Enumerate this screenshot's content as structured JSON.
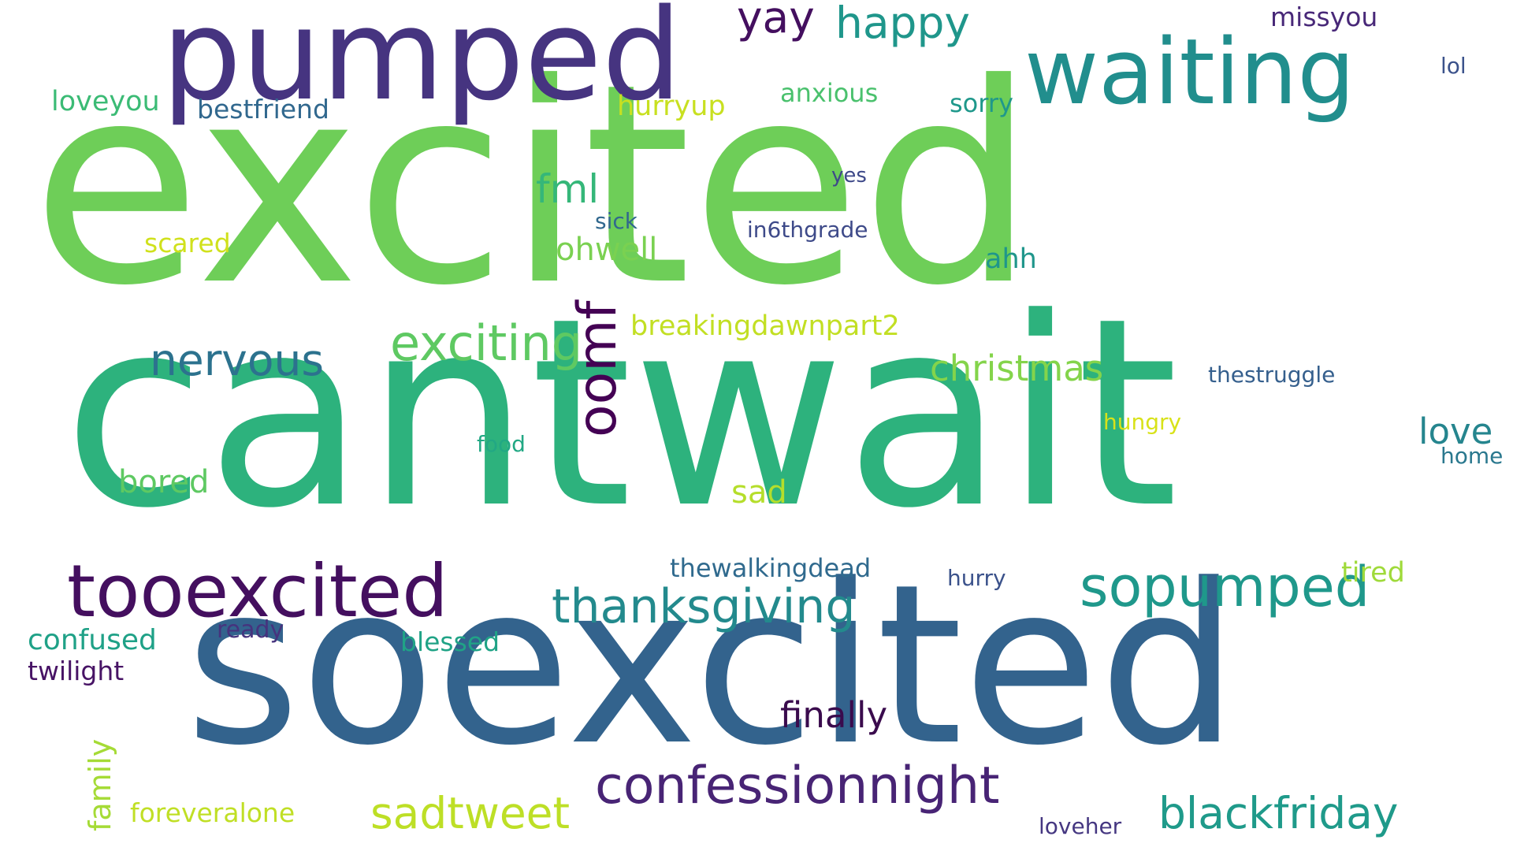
{
  "words": [
    {
      "id": "excited",
      "text": "excited",
      "color": "#6ece58"
    },
    {
      "id": "cantwait",
      "text": "cantwait",
      "color": "#2db27d"
    },
    {
      "id": "soexcited",
      "text": "soexcited",
      "color": "#33638d"
    },
    {
      "id": "pumped",
      "text": "pumped",
      "color": "#463480"
    },
    {
      "id": "waiting",
      "text": "waiting",
      "color": "#218e8d"
    },
    {
      "id": "tooexcited",
      "text": "tooexcited",
      "color": "#440f5f"
    },
    {
      "id": "confessionnight",
      "text": "confessionnight",
      "color": "#482475"
    },
    {
      "id": "sopumped",
      "text": "sopumped",
      "color": "#1f988b"
    },
    {
      "id": "thanksgiving",
      "text": "thanksgiving",
      "color": "#238a8d"
    },
    {
      "id": "exciting",
      "text": "exciting",
      "color": "#5ec962"
    },
    {
      "id": "blackfriday",
      "text": "blackfriday",
      "color": "#1f9a8a"
    },
    {
      "id": "sadtweet",
      "text": "sadtweet",
      "color": "#bddf26"
    },
    {
      "id": "oomf",
      "text": "oomf",
      "color": "#440154"
    },
    {
      "id": "nervous",
      "text": "nervous",
      "color": "#2c728e"
    },
    {
      "id": "happy",
      "text": "happy",
      "color": "#1f968b"
    },
    {
      "id": "christmas",
      "text": "christmas",
      "color": "#84d44b"
    },
    {
      "id": "yay",
      "text": "yay",
      "color": "#440f5f"
    },
    {
      "id": "finally",
      "text": "finally",
      "color": "#3a0b4d"
    },
    {
      "id": "fml",
      "text": "fml",
      "color": "#35b779"
    },
    {
      "id": "ohwell",
      "text": "ohwell",
      "color": "#7ad151"
    },
    {
      "id": "love",
      "text": "love",
      "color": "#25858e"
    },
    {
      "id": "bored",
      "text": "bored",
      "color": "#5ec962"
    },
    {
      "id": "confused",
      "text": "confused",
      "color": "#1fa187"
    },
    {
      "id": "family",
      "text": "family",
      "color": "#a5db36"
    },
    {
      "id": "breakingdawnpart2",
      "text": "breakingdawnpart2",
      "color": "#c2df23"
    },
    {
      "id": "sad",
      "text": "sad",
      "color": "#b5de2b"
    },
    {
      "id": "ahh",
      "text": "ahh",
      "color": "#1f968b"
    },
    {
      "id": "anxious",
      "text": "anxious",
      "color": "#4ac16d"
    },
    {
      "id": "sorry",
      "text": "sorry",
      "color": "#1f988b"
    },
    {
      "id": "loveyou",
      "text": "loveyou",
      "color": "#3bbb75"
    },
    {
      "id": "bestfriend",
      "text": "bestfriend",
      "color": "#31688e"
    },
    {
      "id": "hurryup",
      "text": "hurryup",
      "color": "#c8e020"
    },
    {
      "id": "missyou",
      "text": "missyou",
      "color": "#482878"
    },
    {
      "id": "lol",
      "text": "lol",
      "color": "#3b528b"
    },
    {
      "id": "yes",
      "text": "yes",
      "color": "#3e4989"
    },
    {
      "id": "sick",
      "text": "sick",
      "color": "#31688e"
    },
    {
      "id": "in6thgrade",
      "text": "in6thgrade",
      "color": "#3e4a89"
    },
    {
      "id": "scared",
      "text": "scared",
      "color": "#d0e11c"
    },
    {
      "id": "thestruggle",
      "text": "thestruggle",
      "color": "#355f8d"
    },
    {
      "id": "hungry",
      "text": "hungry",
      "color": "#d8e219"
    },
    {
      "id": "home",
      "text": "home",
      "color": "#2a788e"
    },
    {
      "id": "food",
      "text": "food",
      "color": "#22a884"
    },
    {
      "id": "thewalkingdead",
      "text": "thewalkingdead",
      "color": "#306a8e"
    },
    {
      "id": "hurry",
      "text": "hurry",
      "color": "#3b528b"
    },
    {
      "id": "tired",
      "text": "tired",
      "color": "#9fda3a"
    },
    {
      "id": "ready",
      "text": "ready",
      "color": "#46337e"
    },
    {
      "id": "blessed",
      "text": "blessed",
      "color": "#20a386"
    },
    {
      "id": "twilight",
      "text": "twilight",
      "color": "#471365"
    },
    {
      "id": "foreveralone",
      "text": "foreveralone",
      "color": "#c0df25"
    },
    {
      "id": "loveher",
      "text": "loveher",
      "color": "#453781"
    }
  ]
}
